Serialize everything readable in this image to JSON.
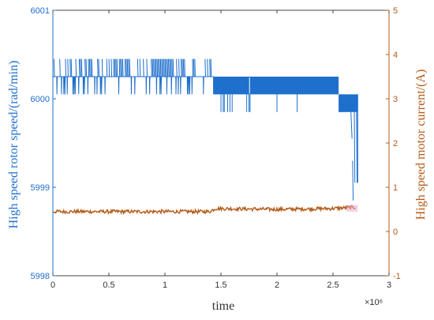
{
  "chart_data": {
    "type": "line",
    "xlabel": "time",
    "x_exponent_label": "×10⁶",
    "xlim": [
      0,
      3
    ],
    "x_ticks": [
      "0",
      "0.5",
      "1",
      "1.5",
      "2",
      "2.5",
      "3"
    ],
    "left_axis": {
      "label": "High speed rotor speed/(rad/min)",
      "ylim": [
        5998,
        6001
      ],
      "ticks": [
        "5998",
        "5999",
        "6000",
        "6001"
      ],
      "color": "#1f6fcc"
    },
    "right_axis": {
      "label": "High speed motor current/(A)",
      "ylim": [
        -1,
        5
      ],
      "ticks": [
        "-1",
        "0",
        "1",
        "2",
        "3",
        "4",
        "5"
      ],
      "color": "#b35a18"
    },
    "series": [
      {
        "axis": "left",
        "color": "#1f6fcc",
        "x_unit": "x10^6",
        "levels": [
          6000.25,
          6000.45,
          6000.05,
          5999.85
        ],
        "segments": [
          {
            "x_start": 0.0,
            "x_end": 1.43,
            "base": 6000.25,
            "high": 6000.45,
            "low": 6000.05,
            "dense_high": [
              0.88,
              1.08
            ]
          },
          {
            "x_start": 1.43,
            "x_end": 2.55,
            "base": 6000.25,
            "high": 6000.25,
            "low": 6000.05,
            "dense_fill": true,
            "dips_to": 5999.85
          },
          {
            "x_start": 2.55,
            "x_end": 2.72,
            "base": 6000.05,
            "low": 5999.85,
            "drop_to": 5999.05,
            "final_dip": 5998.85
          }
        ]
      },
      {
        "axis": "right",
        "color": "#b35a18",
        "x_unit": "x10^6",
        "x": [
          0.0,
          0.5,
          1.0,
          1.4,
          1.45,
          2.0,
          2.5,
          2.7
        ],
        "y": [
          0.45,
          0.45,
          0.45,
          0.45,
          0.52,
          0.5,
          0.52,
          0.55
        ]
      }
    ],
    "grid": false,
    "legend": "none"
  }
}
